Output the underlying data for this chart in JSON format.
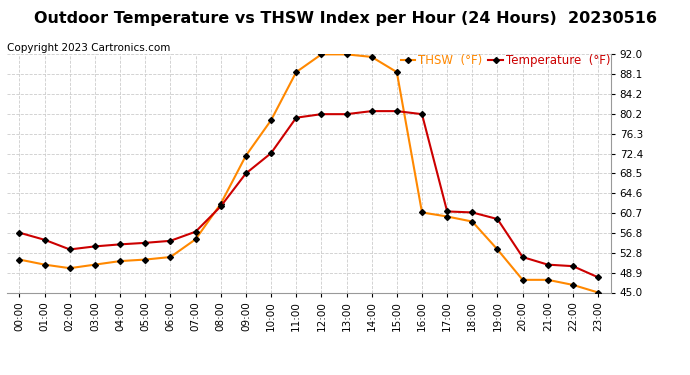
{
  "title": "Outdoor Temperature vs THSW Index per Hour (24 Hours)  20230516",
  "copyright": "Copyright 2023 Cartronics.com",
  "hours": [
    "00:00",
    "01:00",
    "02:00",
    "03:00",
    "04:00",
    "05:00",
    "06:00",
    "07:00",
    "08:00",
    "09:00",
    "10:00",
    "11:00",
    "12:00",
    "13:00",
    "14:00",
    "15:00",
    "16:00",
    "17:00",
    "18:00",
    "19:00",
    "20:00",
    "21:00",
    "22:00",
    "23:00"
  ],
  "temperature": [
    56.8,
    55.4,
    53.5,
    54.1,
    54.5,
    54.8,
    55.2,
    57.0,
    62.0,
    68.5,
    72.5,
    79.5,
    80.2,
    80.2,
    80.8,
    80.8,
    80.2,
    61.0,
    60.8,
    59.5,
    52.0,
    50.5,
    50.2,
    48.0
  ],
  "thsw": [
    51.5,
    50.5,
    49.8,
    50.5,
    51.2,
    51.5,
    52.0,
    55.5,
    62.5,
    72.0,
    79.0,
    88.5,
    92.0,
    92.0,
    91.5,
    88.5,
    60.8,
    60.0,
    59.0,
    53.5,
    47.5,
    47.5,
    46.5,
    45.0
  ],
  "temp_color": "#cc0000",
  "thsw_color": "#ff8800",
  "marker": "D",
  "marker_size": 3,
  "marker_color": "#000000",
  "ylim": [
    45.0,
    92.0
  ],
  "yticks": [
    45.0,
    48.9,
    52.8,
    56.8,
    60.7,
    64.6,
    68.5,
    72.4,
    76.3,
    80.2,
    84.2,
    88.1,
    92.0
  ],
  "grid_color": "#cccccc",
  "background_color": "#ffffff",
  "legend_thsw": "THSW  (°F)",
  "legend_temp": "Temperature  (°F)",
  "title_fontsize": 11.5,
  "copyright_fontsize": 7.5,
  "tick_fontsize": 7.5,
  "legend_fontsize": 8.5
}
